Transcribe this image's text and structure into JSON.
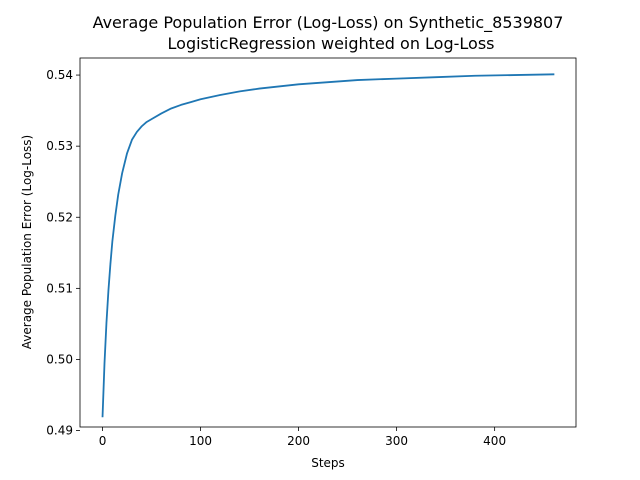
{
  "chart_data": {
    "type": "line",
    "title_line1": "Average Population Error (Log-Loss) on Synthetic_8539807",
    "title_line2": "LogisticRegression weighted on Log-Loss",
    "xlabel": "Steps",
    "ylabel": "Average Population Error (Log-Loss)",
    "xlim": [
      -23,
      483
    ],
    "ylim": [
      0.4905,
      0.5424
    ],
    "xticks": [
      0,
      100,
      200,
      300,
      400
    ],
    "xtick_labels": [
      "0",
      "100",
      "200",
      "300",
      "400"
    ],
    "yticks": [
      0.49,
      0.5,
      0.51,
      0.52,
      0.53,
      0.54
    ],
    "ytick_labels": [
      "0.49",
      "0.50",
      "0.51",
      "0.52",
      "0.53",
      "0.54"
    ],
    "grid": false,
    "legend": "none",
    "series": [
      {
        "color": "#1f77b4",
        "x": [
          0,
          2,
          4,
          6,
          8,
          10,
          13,
          16,
          20,
          25,
          30,
          35,
          40,
          45,
          50,
          60,
          70,
          80,
          90,
          100,
          120,
          140,
          160,
          180,
          200,
          230,
          260,
          300,
          340,
          380,
          420,
          460
        ],
        "y": [
          0.492,
          0.4995,
          0.5052,
          0.5097,
          0.5134,
          0.5166,
          0.5202,
          0.5232,
          0.5262,
          0.529,
          0.5309,
          0.532,
          0.5328,
          0.5334,
          0.5338,
          0.5346,
          0.5353,
          0.5358,
          0.5362,
          0.5366,
          0.5372,
          0.5377,
          0.5381,
          0.5384,
          0.5387,
          0.539,
          0.5393,
          0.5395,
          0.5397,
          0.5399,
          0.54,
          0.5401
        ]
      }
    ]
  }
}
